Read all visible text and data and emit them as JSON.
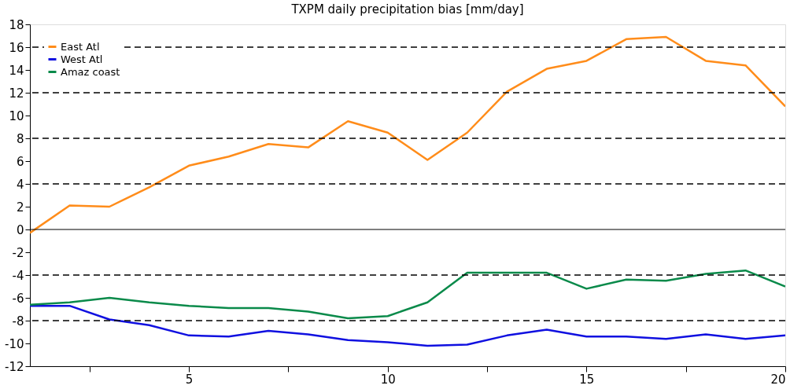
{
  "chart_data": {
    "type": "line",
    "title": "TXPM daily precipitation bias [mm/day]",
    "x": [
      1,
      2,
      3,
      4,
      5,
      6,
      7,
      8,
      9,
      10,
      11,
      12,
      13,
      14,
      15,
      16,
      17,
      18,
      19,
      20
    ],
    "series": [
      {
        "name": "East Atl",
        "color": "#ff8c1a",
        "values": [
          -0.3,
          2.1,
          2.0,
          3.7,
          5.6,
          6.4,
          7.5,
          7.2,
          9.5,
          8.5,
          6.1,
          8.5,
          12.1,
          14.1,
          14.8,
          16.7,
          16.9,
          14.8,
          14.4,
          10.8
        ]
      },
      {
        "name": "West Atl",
        "color": "#1010e0",
        "values": [
          -6.7,
          -6.7,
          -7.9,
          -8.4,
          -9.3,
          -9.4,
          -8.9,
          -9.2,
          -9.7,
          -9.9,
          -10.2,
          -10.1,
          -9.3,
          -8.8,
          -9.4,
          -9.4,
          -9.6,
          -9.2,
          -9.6,
          -9.3
        ]
      },
      {
        "name": "Amaz coast",
        "color": "#0a8a4a",
        "values": [
          -6.6,
          -6.4,
          -6.0,
          -6.4,
          -6.7,
          -6.9,
          -6.9,
          -7.2,
          -7.8,
          -7.6,
          -6.4,
          -3.8,
          -3.8,
          -3.8,
          -5.2,
          -4.4,
          -4.5,
          -3.9,
          -3.6,
          -5.0
        ]
      }
    ],
    "xlim": [
      1,
      20
    ],
    "xticks": [
      {
        "value": 2.5,
        "label": null
      },
      5,
      {
        "value": 7.5,
        "label": null
      },
      10,
      {
        "value": 12.5,
        "label": null
      },
      15,
      {
        "value": 17.5,
        "label": null
      },
      20
    ],
    "ylim": [
      -12,
      18
    ],
    "yticks": [
      -12,
      -10,
      -8,
      -6,
      -4,
      -2,
      0,
      2,
      4,
      6,
      8,
      10,
      12,
      14,
      16,
      18
    ],
    "ref_lines": [
      {
        "axis": "y",
        "value": 16,
        "line_style": "dashed",
        "color": "#000000"
      },
      {
        "axis": "y",
        "value": 12,
        "line_style": "dashed",
        "color": "#000000"
      },
      {
        "axis": "y",
        "value": 8,
        "line_style": "dashed",
        "color": "#000000"
      },
      {
        "axis": "y",
        "value": 4,
        "line_style": "dashed",
        "color": "#000000"
      },
      {
        "axis": "y",
        "value": 0,
        "line_style": "solid",
        "color": "#000000"
      },
      {
        "axis": "y",
        "value": -4,
        "line_style": "dashed",
        "color": "#000000"
      },
      {
        "axis": "y",
        "value": -8,
        "line_style": "dashed",
        "color": "#000000"
      }
    ],
    "legend": "top left",
    "grid": false,
    "marker": "none",
    "line_style": "solid"
  }
}
